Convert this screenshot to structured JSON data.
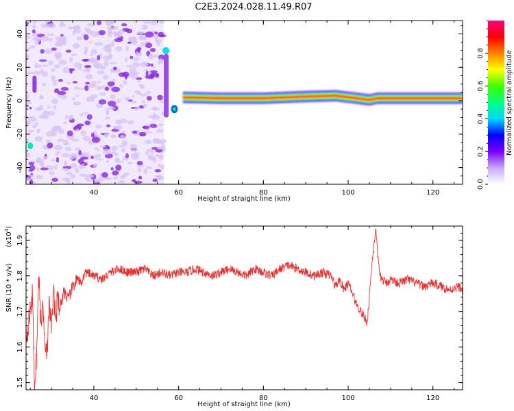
{
  "figure_title": "C2E3.2024.028.11.49.R07",
  "colors": {
    "snr_line": "#e83030",
    "spectrogram_scatter": "#8a2be2",
    "spectrogram_scatter_light": "#d8c2f5",
    "axis": "#000000"
  },
  "chart_data": [
    {
      "type": "heatmap",
      "title": "",
      "xlabel": "Height of straight line (km)",
      "ylabel": "Frequency (Hz)",
      "xlim": [
        24,
        127
      ],
      "ylim": [
        -50,
        48
      ],
      "xticks": [
        40,
        60,
        80,
        100,
        120
      ],
      "yticks": [
        -40,
        -20,
        0,
        20,
        40
      ],
      "colorbar": {
        "label": "Normalized spectral amplitude",
        "range": [
          0,
          1
        ],
        "ticks": [
          0.0,
          0.2,
          0.4,
          0.6,
          0.8
        ],
        "colormap": [
          "#ffffff",
          "#c8a8ff",
          "#7a00ff",
          "#0000ff",
          "#00d8ff",
          "#00ff80",
          "#40ff00",
          "#ffff00",
          "#ff8000",
          "#ff0000",
          "#ff0080"
        ]
      },
      "regions": [
        {
          "label": "scatter",
          "x_range": [
            24,
            56.5
          ],
          "y_range": [
            -50,
            48
          ],
          "amplitude": 0.15
        },
        {
          "label": "transition",
          "x_range": [
            56.5,
            61
          ],
          "y_range": [
            -10,
            32
          ],
          "amplitude": 0.4
        },
        {
          "label": "ridge",
          "x_range": [
            61,
            127
          ],
          "center_freq_hz": 1.5,
          "amplitude": 0.95
        }
      ],
      "ridge_center": [
        {
          "x": 61,
          "y": 2.0
        },
        {
          "x": 70,
          "y": 1.5
        },
        {
          "x": 80,
          "y": 1.5
        },
        {
          "x": 90,
          "y": 2.5
        },
        {
          "x": 97,
          "y": 3.0
        },
        {
          "x": 102,
          "y": 1.5
        },
        {
          "x": 105,
          "y": 0.5
        },
        {
          "x": 107,
          "y": 1.5
        },
        {
          "x": 127,
          "y": 1.5
        }
      ]
    },
    {
      "type": "line",
      "title": "",
      "xlabel": "Height of straight line (km)",
      "ylabel": "SNR (10 * v/v)",
      "y_multiplier_label": "(x10",
      "y_multiplier_exp": "4",
      "y_multiplier_close": ")",
      "xlim": [
        24,
        127
      ],
      "ylim": [
        1.48,
        1.94
      ],
      "xticks": [
        40,
        60,
        80,
        100,
        120
      ],
      "yticks": [
        1.5,
        1.6,
        1.7,
        1.8,
        1.9
      ],
      "series": [
        {
          "x": [
            24,
            24.5,
            25,
            25.5,
            26,
            26.5,
            27,
            27.5,
            28,
            28.5,
            29,
            29.5,
            30,
            30.5,
            31,
            31.5,
            32,
            33,
            34,
            35,
            36,
            37,
            38,
            40,
            42,
            44,
            46,
            48,
            50,
            52,
            54,
            56,
            58,
            60,
            62,
            64,
            66,
            68,
            70,
            72,
            74,
            76,
            78,
            80,
            82,
            84,
            86,
            88,
            90,
            92,
            94,
            96,
            97,
            98,
            99,
            100,
            101,
            102,
            103,
            103.5,
            104,
            104.5,
            105,
            105.5,
            106,
            106.5,
            107,
            107.5,
            108,
            109,
            110,
            112,
            114,
            116,
            118,
            120,
            122,
            124,
            126,
            127
          ],
          "y": [
            1.63,
            1.66,
            1.7,
            1.75,
            1.49,
            1.58,
            1.8,
            1.67,
            1.71,
            1.62,
            1.59,
            1.72,
            1.66,
            1.75,
            1.68,
            1.74,
            1.71,
            1.76,
            1.73,
            1.77,
            1.79,
            1.78,
            1.81,
            1.8,
            1.79,
            1.81,
            1.82,
            1.81,
            1.81,
            1.82,
            1.8,
            1.81,
            1.8,
            1.81,
            1.81,
            1.82,
            1.81,
            1.8,
            1.81,
            1.82,
            1.81,
            1.8,
            1.82,
            1.81,
            1.8,
            1.82,
            1.83,
            1.82,
            1.81,
            1.8,
            1.81,
            1.8,
            1.77,
            1.79,
            1.76,
            1.78,
            1.75,
            1.72,
            1.7,
            1.69,
            1.68,
            1.67,
            1.74,
            1.82,
            1.88,
            1.93,
            1.85,
            1.8,
            1.79,
            1.78,
            1.79,
            1.78,
            1.79,
            1.78,
            1.77,
            1.78,
            1.77,
            1.76,
            1.77,
            1.76
          ]
        }
      ]
    }
  ]
}
